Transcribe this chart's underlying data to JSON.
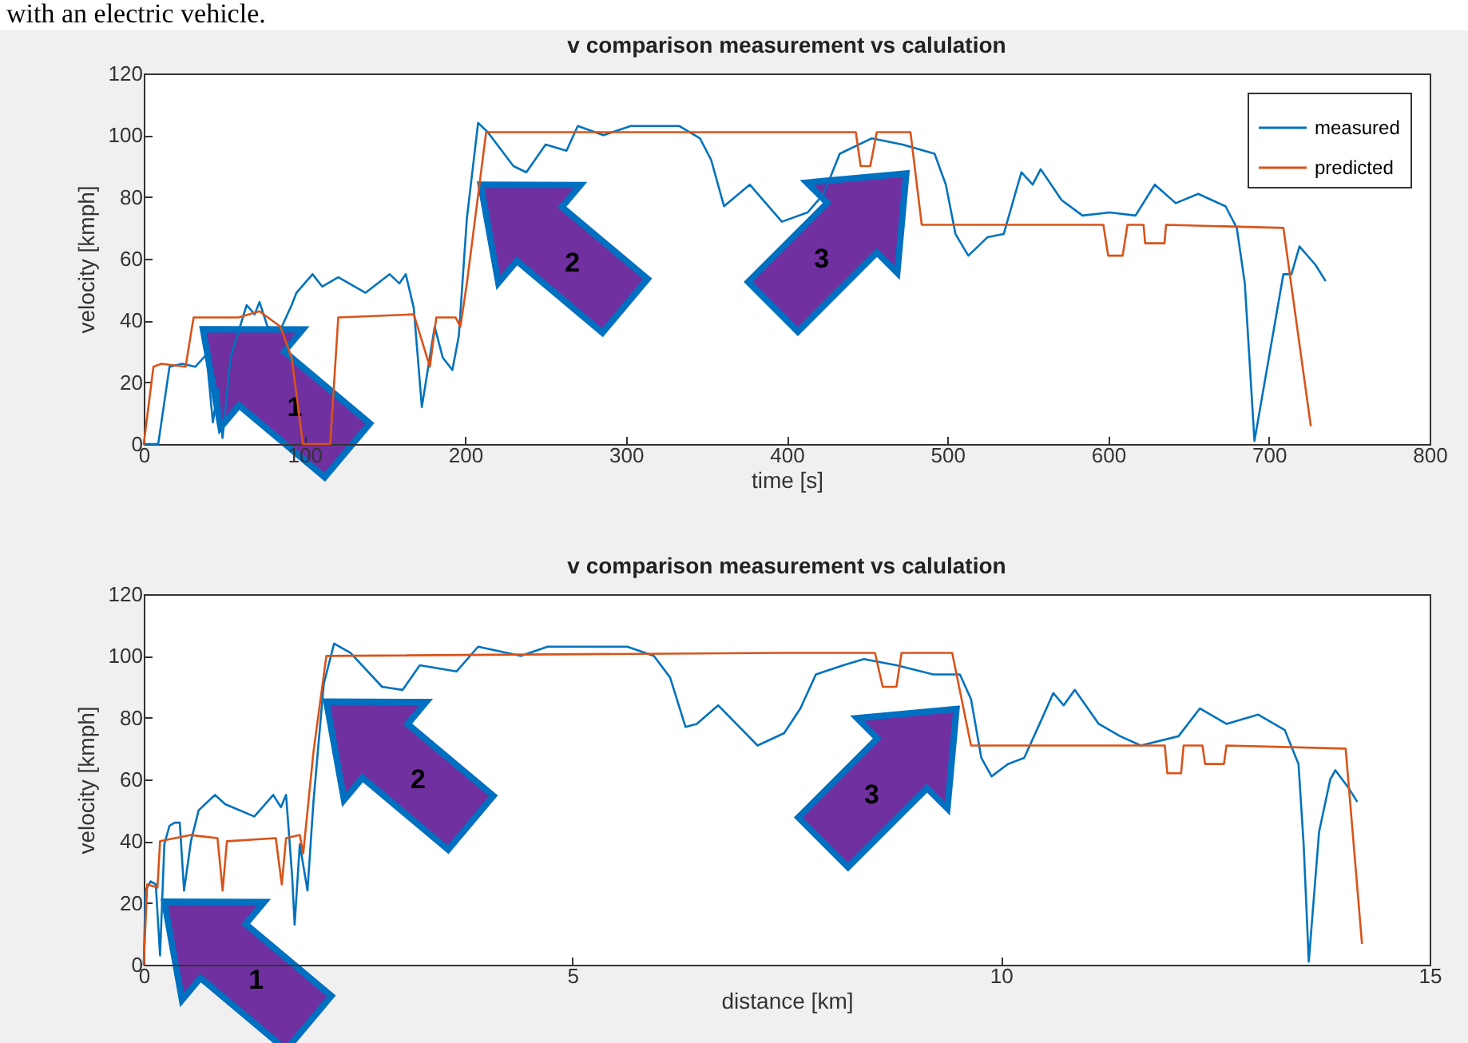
{
  "chart_data": [
    {
      "type": "line",
      "title": "v comparison measurement vs calulation",
      "xlabel": "time [s]",
      "ylabel": "velocity [kmph]",
      "xlim": [
        0,
        800
      ],
      "xticks": [
        0,
        100,
        200,
        300,
        400,
        500,
        600,
        700,
        800
      ],
      "ylim": [
        0,
        120
      ],
      "yticks": [
        0,
        20,
        40,
        60,
        80,
        100,
        120
      ],
      "grid": false,
      "legend": "top right",
      "marker": "none",
      "line_style": "solid",
      "annotations": [
        "with an electric vehicle.",
        "1",
        "2",
        "3"
      ],
      "series": [
        {
          "name": "measured",
          "color": "#0072bd",
          "x": [
            0,
            9,
            16,
            24,
            32,
            39,
            43,
            46,
            49,
            54,
            64,
            69,
            72,
            77,
            85,
            92,
            95,
            105,
            111,
            121,
            138,
            153,
            159,
            163,
            168,
            173,
            181,
            186,
            192,
            196,
            201,
            208,
            214,
            230,
            238,
            250,
            263,
            270,
            286,
            303,
            333,
            346,
            353,
            361,
            377,
            397,
            413,
            423,
            433,
            453,
            472,
            492,
            499,
            505,
            513,
            525,
            535,
            546,
            553,
            558,
            571,
            584,
            601,
            617,
            629,
            642,
            656,
            673,
            680,
            685,
            691,
            699,
            709,
            714,
            719,
            729,
            735
          ],
          "values": [
            0,
            0,
            25,
            26,
            25,
            29,
            7,
            18,
            2,
            28,
            45,
            42,
            46,
            38,
            37,
            45,
            49,
            55,
            51,
            54,
            49,
            55,
            52,
            55,
            44,
            12,
            38,
            28,
            24,
            35,
            73,
            104,
            101,
            90,
            88,
            97,
            95,
            103,
            100,
            103,
            103,
            99,
            92,
            77,
            84,
            72,
            75,
            81,
            94,
            99,
            97,
            94,
            84,
            68,
            61,
            67,
            68,
            88,
            84,
            89,
            79,
            74,
            75,
            74,
            84,
            78,
            81,
            77,
            70,
            52,
            1,
            25,
            55,
            55,
            64,
            58,
            53
          ]
        },
        {
          "name": "predicted",
          "color": "#d95319",
          "x": [
            0,
            6,
            11,
            26,
            31,
            59,
            72,
            85,
            92,
            99,
            116,
            121,
            168,
            178,
            182,
            194,
            197,
            201,
            213,
            300,
            373,
            443,
            446,
            452,
            456,
            477,
            484,
            597,
            600,
            609,
            612,
            622,
            623,
            635,
            636,
            709,
            726
          ],
          "values": [
            0,
            25,
            26,
            25,
            41,
            41,
            43,
            38,
            28,
            0,
            0,
            41,
            42,
            25,
            41,
            41,
            38,
            52,
            101,
            101,
            101,
            101,
            90,
            90,
            101,
            101,
            71,
            71,
            61,
            61,
            71,
            71,
            65,
            65,
            71,
            70,
            6
          ]
        }
      ]
    },
    {
      "type": "line",
      "title": "v comparison measurement vs calulation",
      "xlabel": "distance [km]",
      "ylabel": "velocity [kmph]",
      "xlim": [
        0,
        15
      ],
      "xticks": [
        0,
        5,
        10,
        15
      ],
      "ylim": [
        0,
        120
      ],
      "yticks": [
        0,
        20,
        40,
        60,
        80,
        100,
        120
      ],
      "grid": false,
      "legend": "top right",
      "marker": "none",
      "line_style": "solid",
      "annotations": [
        "1",
        "2",
        "3"
      ],
      "series": [
        {
          "name": "measured",
          "color": "#0072bd",
          "x": [
            0,
            0.02,
            0.08,
            0.14,
            0.19,
            0.24,
            0.3,
            0.36,
            0.42,
            0.47,
            0.55,
            0.64,
            0.83,
            0.95,
            1.29,
            1.51,
            1.6,
            1.66,
            1.73,
            1.76,
            1.82,
            1.91,
            1.98,
            2.1,
            2.22,
            2.41,
            2.78,
            3.02,
            3.22,
            3.65,
            3.9,
            4.4,
            4.71,
            5.64,
            5.95,
            6.14,
            6.32,
            6.45,
            6.7,
            7.16,
            7.47,
            7.66,
            7.84,
            8.16,
            8.4,
            8.78,
            9.21,
            9.52,
            9.65,
            9.77,
            9.89,
            10.08,
            10.27,
            10.45,
            10.61,
            10.73,
            10.86,
            11.14,
            11.39,
            11.63,
            12.07,
            12.32,
            12.63,
            13.0,
            13.31,
            13.47,
            13.53,
            13.59,
            13.71,
            13.84,
            13.9,
            14.06,
            14.15
          ],
          "values": [
            0,
            24,
            27,
            26,
            3,
            39,
            45,
            46,
            46,
            24,
            40,
            50,
            55,
            52,
            48,
            55,
            51,
            55,
            29,
            13,
            39,
            24,
            53,
            91,
            104,
            101,
            90,
            89,
            97,
            95,
            103,
            100,
            103,
            103,
            100,
            93,
            77,
            78,
            84,
            71,
            75,
            83,
            94,
            97,
            99,
            97,
            94,
            94,
            86,
            67,
            61,
            65,
            67,
            78,
            88,
            84,
            89,
            78,
            74,
            71,
            74,
            83,
            78,
            81,
            76,
            65,
            39,
            1,
            43,
            60,
            63,
            57,
            53
          ]
        },
        {
          "name": "predicted",
          "color": "#d95319",
          "x": [
            0,
            0.04,
            0.16,
            0.19,
            0.55,
            0.86,
            0.92,
            0.97,
            1.54,
            1.61,
            1.66,
            1.82,
            1.86,
            1.98,
            2.13,
            7.44,
            8.53,
            8.62,
            8.78,
            8.84,
            9.43,
            9.65,
            11.91,
            11.94,
            12.1,
            12.13,
            12.35,
            12.38,
            12.6,
            12.63,
            14.02,
            14.21
          ],
          "values": [
            0,
            26,
            25,
            40,
            42,
            41,
            24,
            40,
            41,
            26,
            41,
            42,
            36,
            69,
            100,
            101,
            101,
            90,
            90,
            101,
            101,
            71,
            71,
            62,
            62,
            71,
            71,
            65,
            65,
            71,
            70,
            7
          ]
        }
      ]
    }
  ]
}
